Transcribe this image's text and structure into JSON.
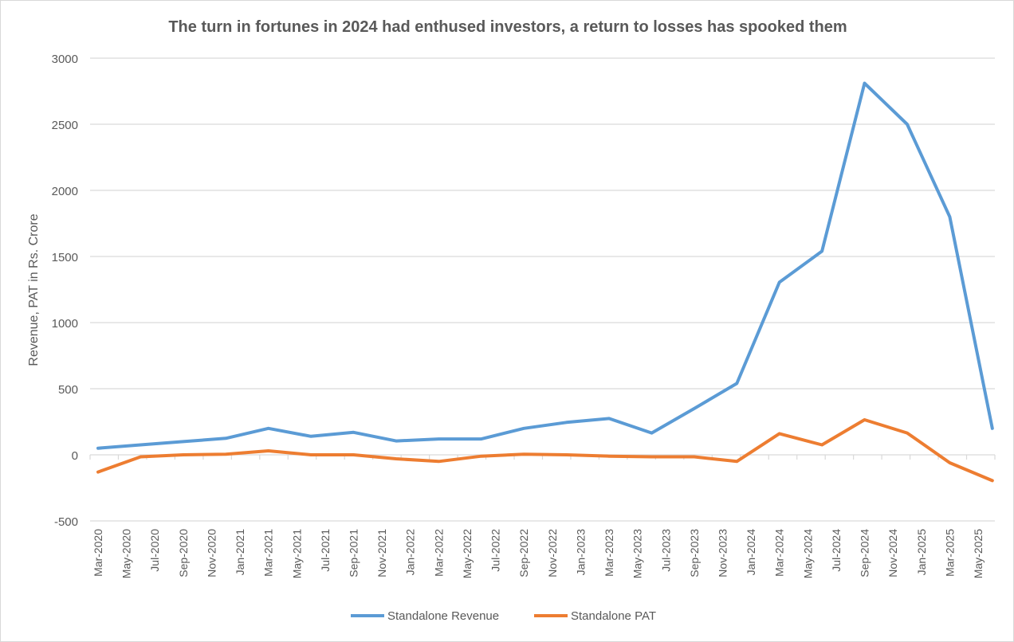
{
  "chart_data": {
    "type": "line",
    "title": "The turn in fortunes in 2024 had enthused investors, a return to losses has spooked them",
    "xlabel": "",
    "ylabel": "Revenue, PAT in Rs. Crore",
    "ylim": [
      -500,
      3000
    ],
    "yticks": [
      -500,
      0,
      500,
      1000,
      1500,
      2000,
      2500,
      3000
    ],
    "grid": true,
    "legend_position": "bottom",
    "x_tick_labels": [
      "Mar-2020",
      "May-2020",
      "Jul-2020",
      "Sep-2020",
      "Nov-2020",
      "Jan-2021",
      "Mar-2021",
      "May-2021",
      "Jul-2021",
      "Sep-2021",
      "Nov-2021",
      "Jan-2022",
      "Mar-2022",
      "May-2022",
      "Jul-2022",
      "Sep-2022",
      "Nov-2022",
      "Jan-2023",
      "Mar-2023",
      "May-2023",
      "Jul-2023",
      "Sep-2023",
      "Nov-2023",
      "Jan-2024",
      "Mar-2024",
      "May-2024",
      "Jul-2024",
      "Sep-2024",
      "Nov-2024",
      "Jan-2025",
      "Mar-2025",
      "May-2025"
    ],
    "x": [
      "Mar-2020",
      "Jun-2020",
      "Sep-2020",
      "Dec-2020",
      "Mar-2021",
      "Jun-2021",
      "Sep-2021",
      "Dec-2021",
      "Mar-2022",
      "Jun-2022",
      "Sep-2022",
      "Dec-2022",
      "Mar-2023",
      "Jun-2023",
      "Sep-2023",
      "Dec-2023",
      "Mar-2024",
      "Jun-2024",
      "Sep-2024",
      "Dec-2024",
      "Mar-2025",
      "Jun-2025"
    ],
    "series": [
      {
        "name": "Standalone Revenue",
        "color": "#5b9bd5",
        "values": [
          50,
          75,
          100,
          125,
          200,
          140,
          170,
          105,
          120,
          120,
          200,
          245,
          275,
          165,
          350,
          540,
          1305,
          1540,
          2810,
          2500,
          1800,
          200
        ]
      },
      {
        "name": "Standalone PAT",
        "color": "#ed7d31",
        "values": [
          -130,
          -15,
          0,
          5,
          30,
          0,
          0,
          -30,
          -50,
          -10,
          5,
          0,
          -10,
          -15,
          -15,
          -50,
          160,
          75,
          265,
          165,
          -60,
          -195
        ]
      }
    ]
  }
}
